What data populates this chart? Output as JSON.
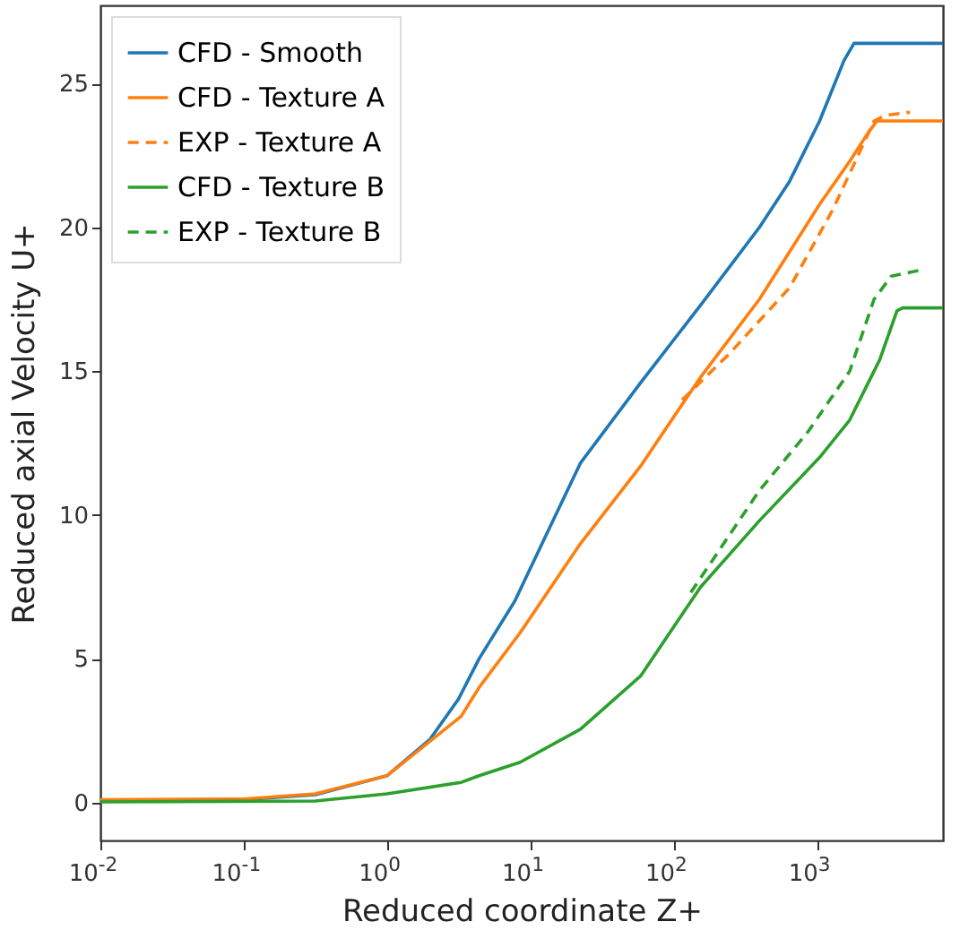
{
  "chart_data": {
    "type": "line",
    "xlabel": "Reduced coordinate Z+",
    "ylabel": "Reduced axial Velocity U+",
    "log": "x",
    "xlim": [
      0.01,
      7600
    ],
    "ylim": [
      -1.32,
      27.72
    ],
    "xticks": [
      {
        "value": 0.01,
        "label": "10$^{-2}$"
      },
      {
        "value": 0.1,
        "label": "10$^{-1}$"
      },
      {
        "value": 1,
        "label": "10$^{0}$"
      },
      {
        "value": 10,
        "label": "10$^{1}$"
      },
      {
        "value": 100,
        "label": "10$^{2}$"
      },
      {
        "value": 1000,
        "label": "10$^{3}$"
      }
    ],
    "yticks": [
      0,
      5,
      10,
      15,
      20,
      25
    ],
    "grid": false,
    "legend": "top left",
    "series": [
      {
        "name": "CFD - Smooth",
        "color": "#1f77b4",
        "line_style": "solid",
        "x": [
          0.01,
          0.1,
          0.316,
          1,
          2,
          3.16,
          4.4,
          7.8,
          13.8,
          22.4,
          59,
          155,
          398,
          646,
          1047,
          1549,
          1820,
          7600
        ],
        "values": [
          0.08,
          0.1,
          0.27,
          0.93,
          2.2,
          3.6,
          5.0,
          7.0,
          9.6,
          11.8,
          14.6,
          17.3,
          20.0,
          21.6,
          23.7,
          25.8,
          26.4,
          26.4
        ]
      },
      {
        "name": "CFD - Texture A",
        "color": "#ff7f0e",
        "line_style": "solid",
        "x": [
          0.01,
          0.1,
          0.316,
          1,
          3.3,
          4.4,
          8.5,
          22.4,
          59,
          155,
          398,
          1047,
          1698,
          2291,
          2630,
          7600
        ],
        "values": [
          0.1,
          0.12,
          0.3,
          0.93,
          3.0,
          4.0,
          5.9,
          9.0,
          11.7,
          14.8,
          17.5,
          20.8,
          22.3,
          23.3,
          23.7,
          23.7
        ]
      },
      {
        "name": "EXP - Texture A",
        "color": "#ff7f0e",
        "line_style": "dashed",
        "x": [
          115,
          245,
          646,
          1288,
          1862,
          2512,
          3020,
          4470
        ],
        "values": [
          14.0,
          15.6,
          17.9,
          20.6,
          22.3,
          23.7,
          23.9,
          24.0
        ]
      },
      {
        "name": "CFD - Texture B",
        "color": "#2ca02c",
        "line_style": "solid",
        "x": [
          0.01,
          0.316,
          1,
          3.3,
          4.4,
          8.5,
          22.4,
          59,
          155,
          398,
          1047,
          1698,
          2754,
          3630,
          3980,
          7600
        ],
        "values": [
          0.02,
          0.05,
          0.3,
          0.7,
          0.93,
          1.4,
          2.55,
          4.4,
          7.5,
          9.8,
          12.0,
          13.3,
          15.4,
          17.1,
          17.2,
          17.2
        ]
      },
      {
        "name": "EXP - Texture B",
        "color": "#2ca02c",
        "line_style": "dashed",
        "x": [
          132,
          398,
          871,
          1698,
          2512,
          3311,
          5130
        ],
        "values": [
          7.3,
          10.85,
          12.9,
          15.0,
          17.5,
          18.3,
          18.5
        ]
      }
    ]
  }
}
